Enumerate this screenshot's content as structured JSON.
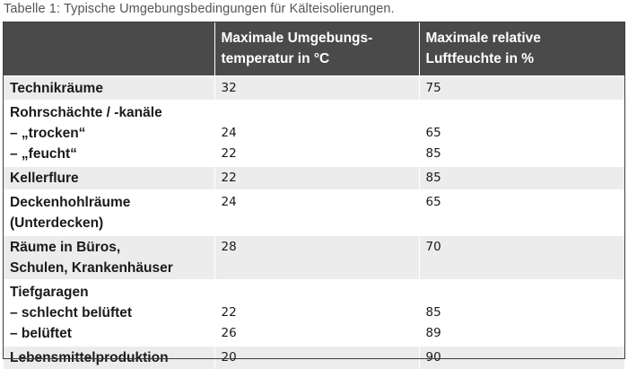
{
  "caption": "Tabelle 1: Typische Umgebungsbedingungen für Kälteisolierungen.",
  "table": {
    "headers": [
      "",
      [
        "Maximale Umgebungs-",
        "temperatur in °C"
      ],
      [
        "Maximale relative",
        "Luftfeuchte in %"
      ]
    ],
    "rows": [
      {
        "label": [
          "Technikräume"
        ],
        "temp": [
          "32"
        ],
        "humidity": [
          "75"
        ]
      },
      {
        "label": [
          "Rohrschächte / -kanäle",
          "– „trocken“",
          "– „feucht“"
        ],
        "temp": [
          "",
          "24",
          "22"
        ],
        "humidity": [
          "",
          "65",
          "85"
        ]
      },
      {
        "label": [
          "Kellerflure"
        ],
        "temp": [
          "22"
        ],
        "humidity": [
          "85"
        ]
      },
      {
        "label": [
          "Deckenhohlräume",
          "(Unterdecken)"
        ],
        "temp": [
          "24"
        ],
        "humidity": [
          "65"
        ]
      },
      {
        "label": [
          "Räume in Büros,",
          "Schulen, Krankenhäuser"
        ],
        "temp": [
          "28"
        ],
        "humidity": [
          "70"
        ]
      },
      {
        "label": [
          "Tiefgaragen",
          "– schlecht belüftet",
          "– belüftet"
        ],
        "temp": [
          "",
          "22",
          "26"
        ],
        "humidity": [
          "",
          "85",
          "89"
        ]
      },
      {
        "label": [
          "Lebensmittelproduktion"
        ],
        "temp": [
          "20"
        ],
        "humidity": [
          "90"
        ]
      }
    ]
  }
}
